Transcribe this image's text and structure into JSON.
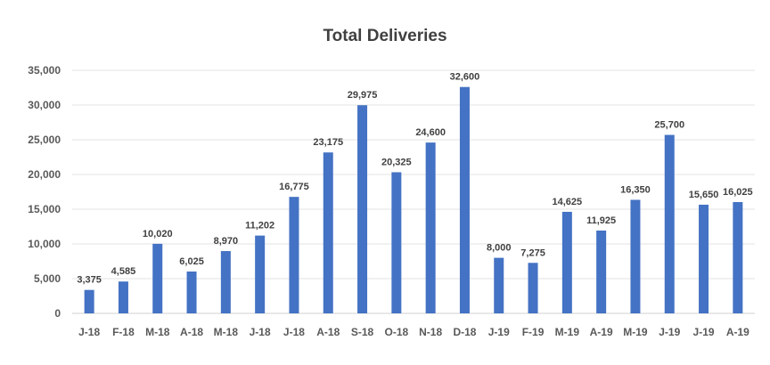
{
  "chart_data": {
    "type": "bar",
    "title": "Total Deliveries",
    "xlabel": "",
    "ylabel": "",
    "ylim": [
      0,
      35000
    ],
    "ytick_step": 5000,
    "grid": true,
    "legend": "none",
    "bar_color": "#4472C4",
    "categories": [
      "J-18",
      "F-18",
      "M-18",
      "A-18",
      "M-18",
      "J-18",
      "J-18",
      "A-18",
      "S-18",
      "O-18",
      "N-18",
      "D-18",
      "J-19",
      "F-19",
      "M-19",
      "A-19",
      "M-19",
      "J-19",
      "J-19",
      "A-19"
    ],
    "values": [
      3375,
      4585,
      10020,
      6025,
      8970,
      11202,
      16775,
      23175,
      29975,
      20325,
      24600,
      32600,
      8000,
      7275,
      14625,
      11925,
      16350,
      25700,
      15650,
      16025
    ],
    "data_labels": [
      "3,375",
      "4,585",
      "10,020",
      "6,025",
      "8,970",
      "11,202",
      "16,775",
      "23,175",
      "29,975",
      "20,325",
      "24,600",
      "32,600",
      "8,000",
      "7,275",
      "14,625",
      "11,925",
      "16,350",
      "25,700",
      "15,650",
      "16,025"
    ],
    "ytick_labels": [
      "0",
      "5,000",
      "10,000",
      "15,000",
      "20,000",
      "25,000",
      "30,000",
      "35,000"
    ]
  }
}
